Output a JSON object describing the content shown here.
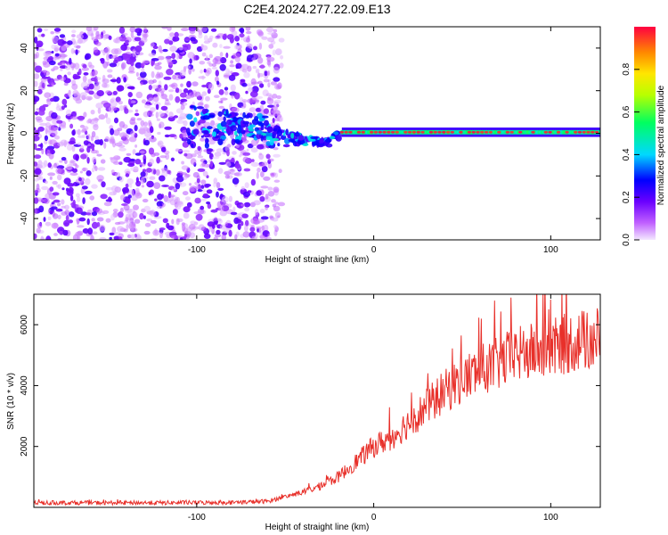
{
  "title": "C2E4.2024.277.22.09.E13",
  "colors": {
    "axis": "#000000",
    "snr_line": "#e8302a"
  },
  "chart_data": [
    {
      "type": "heatmap",
      "xlabel": "Height of straight line (km)",
      "ylabel": "Frequency (Hz)",
      "xlim": [
        -192,
        128
      ],
      "ylim": [
        -50,
        50
      ],
      "xticks": [
        -100,
        0,
        100
      ],
      "yticks": [
        -40,
        -20,
        0,
        20,
        40
      ],
      "colorbar": {
        "label": "Normalized spectral amplitude",
        "range": [
          0,
          1
        ],
        "ticks": [
          0.0,
          0.2,
          0.4,
          0.6,
          0.8
        ],
        "colormap": "rainbow-purple-to-red"
      },
      "description_data": {
        "noise_region_x": [
          -192,
          -52
        ],
        "clutter_region_x": [
          -105,
          -18
        ],
        "stable_line_x": [
          -18,
          128
        ],
        "stable_line_freq_hz": 0.5
      }
    },
    {
      "type": "line",
      "xlabel": "Height of straight line (km)",
      "ylabel": "SNR (10 * v/v)",
      "xlim": [
        -192,
        128
      ],
      "ylim": [
        0,
        7000
      ],
      "xticks": [
        -100,
        0,
        100
      ],
      "yticks": [
        2000,
        4000,
        6000
      ],
      "series": [
        {
          "x": [
            -192,
            -160,
            -120,
            -80,
            -60,
            -50,
            -40,
            -30,
            -20,
            -10,
            0,
            10,
            20,
            30,
            40,
            50,
            60,
            70,
            80,
            90,
            100,
            110,
            120,
            128
          ],
          "values": [
            150,
            150,
            150,
            160,
            200,
            350,
            500,
            700,
            1000,
            1500,
            2000,
            2300,
            2800,
            3300,
            3800,
            4200,
            4500,
            4700,
            5000,
            5100,
            5200,
            5400,
            5500,
            5600
          ]
        }
      ]
    }
  ]
}
